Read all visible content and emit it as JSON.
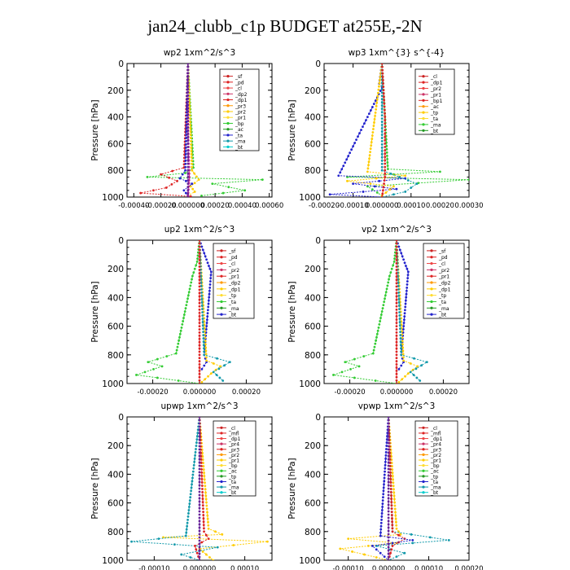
{
  "page": {
    "title": "jan24_clubb_c1p  BUDGET at255E,-2N"
  },
  "chart_data": [
    {
      "type": "line",
      "title": "wp2   1xm^2/s^3",
      "ylabel": "Pressure [hPa]",
      "ylim": [
        1000,
        0
      ],
      "yticks": [
        0,
        200,
        400,
        600,
        800,
        1000
      ],
      "xlim": [
        -0.00045,
        0.00062
      ],
      "xticks": [
        -0.0004,
        -0.0002,
        0.0,
        0.0002,
        0.0004,
        0.0006
      ],
      "xtick_labels": [
        "-0.00040",
        "-0.00020",
        "0.000000",
        "0.00020",
        "0.00040",
        "0.00060"
      ],
      "legend": [
        "_sf",
        "_pd",
        "_cl",
        "_dp2",
        "_dp1",
        "_pr3",
        "_pr2",
        "_pr1",
        "_bp",
        "_ac",
        "_ta",
        "_ma",
        "_bt"
      ],
      "series": [
        {
          "name": "_bp",
          "color": "#33cc33",
          "x": [
            0.0,
            4e-05,
            -2e-05,
            -0.0003,
            0.00055,
            0.00018,
            0.00042,
            0.0001
          ],
          "y": [
            0,
            780,
            820,
            850,
            870,
            900,
            950,
            990
          ]
        },
        {
          "name": "_dp1",
          "color": "#dd2222",
          "x": [
            0.0,
            -3e-05,
            -0.0002,
            -8e-05,
            -0.00016,
            -0.00035,
            2e-05
          ],
          "y": [
            0,
            780,
            830,
            880,
            930,
            970,
            995
          ]
        },
        {
          "name": "_pr1",
          "color": "#ffcc00",
          "x": [
            0.0,
            3e-05,
            8e-05,
            2e-05,
            5e-05,
            0.0
          ],
          "y": [
            0,
            800,
            870,
            920,
            960,
            990
          ]
        },
        {
          "name": "_ac",
          "color": "#2222cc",
          "x": [
            0.0,
            -2e-05,
            -6e-05,
            3e-05,
            -3e-05,
            0.0
          ],
          "y": [
            0,
            800,
            860,
            900,
            950,
            990
          ]
        },
        {
          "name": "_sf",
          "color": "#cc2288",
          "x": [
            0.0,
            0.0,
            1e-05,
            0.0
          ],
          "y": [
            0,
            500,
            850,
            990
          ]
        },
        {
          "name": "_pd",
          "color": "#662299",
          "x": [
            0.0,
            0.0,
            0.0
          ],
          "y": [
            0,
            600,
            1000
          ]
        }
      ]
    },
    {
      "type": "line",
      "title": "wp3   1xm^{3} s^{-4}",
      "ylabel": "Pressure [hPa]",
      "ylim": [
        1000,
        0
      ],
      "yticks": [
        0,
        200,
        400,
        600,
        800,
        1000
      ],
      "xlim": [
        -0.0002,
        0.0003
      ],
      "xticks": [
        -0.0002,
        -0.0001,
        0.0,
        0.0001,
        0.0002,
        0.0003
      ],
      "xtick_labels": [
        "-0.00020",
        "-0.00010",
        "0.000000",
        "0.00010",
        "0.00020",
        "0.00030"
      ],
      "legend": [
        "_cl",
        "_dp1",
        "_pr2",
        "_pr1",
        "_bp1",
        "_ac",
        "_tp",
        "_ta",
        "_ma",
        "_bt"
      ],
      "series": [
        {
          "name": "_ac",
          "color": "#33cc33",
          "x": [
            0.0,
            2e-05,
            0.0002,
            -0.00012,
            0.0003,
            -5e-05,
            0.0
          ],
          "y": [
            0,
            790,
            810,
            850,
            870,
            920,
            990
          ]
        },
        {
          "name": "_tp",
          "color": "#2222cc",
          "x": [
            0.0,
            -1e-05,
            0.0,
            -0.00015,
            8e-05,
            -0.0001,
            5e-05,
            -0.00018,
            0.0
          ],
          "y": [
            0,
            150,
            180,
            840,
            860,
            900,
            940,
            980,
            1000
          ]
        },
        {
          "name": "_pr1",
          "color": "#ffcc00",
          "x": [
            0.0,
            -5e-05,
            8e-05,
            -0.00012,
            4e-05,
            0.0
          ],
          "y": [
            0,
            810,
            840,
            880,
            920,
            990
          ]
        },
        {
          "name": "_ta",
          "color": "#1199aa",
          "x": [
            0.0,
            0.0,
            0.00012,
            8e-05,
            0.0
          ],
          "y": [
            0,
            800,
            900,
            960,
            1000
          ]
        },
        {
          "name": "_cl",
          "color": "#dd2222",
          "x": [
            0.0,
            1e-05,
            1e-05,
            0.0
          ],
          "y": [
            0,
            400,
            850,
            1000
          ]
        }
      ]
    },
    {
      "type": "line",
      "title": "up2   1xm^2/s^3",
      "ylabel": "Pressure [hPa]",
      "ylim": [
        1000,
        0
      ],
      "yticks": [
        0,
        200,
        400,
        600,
        800,
        1000
      ],
      "xlim": [
        -0.00031,
        0.00031
      ],
      "xticks": [
        -0.0002,
        0.0,
        0.0002
      ],
      "xtick_labels": [
        "-0.00020",
        "0.000000",
        "0.00020"
      ],
      "legend": [
        "_sf",
        "_pd",
        "_cl",
        "_pr2",
        "_pr1",
        "_dp2",
        "_dp1",
        "_tp",
        "_ta",
        "_ma",
        "_bt"
      ],
      "series": [
        {
          "name": "_dp2",
          "color": "#33cc33",
          "x": [
            0.0,
            -1e-05,
            -3e-05,
            -0.0001,
            -0.00022,
            -0.00016,
            -0.00027,
            0.0
          ],
          "y": [
            0,
            150,
            250,
            790,
            850,
            880,
            940,
            1000
          ]
        },
        {
          "name": "_tp",
          "color": "#2222cc",
          "x": [
            0.0,
            4e-05,
            5e-05,
            2e-05,
            3e-05,
            1e-05
          ],
          "y": [
            0,
            180,
            220,
            800,
            850,
            900
          ]
        },
        {
          "name": "_pr2",
          "color": "#ffcc00",
          "x": [
            0.0,
            3e-05,
            9e-05,
            5e-05,
            1e-05
          ],
          "y": [
            0,
            840,
            880,
            930,
            990
          ]
        },
        {
          "name": "_ta",
          "color": "#1199aa",
          "x": [
            0.0,
            2e-05,
            0.00013,
            6e-05,
            0.0001
          ],
          "y": [
            0,
            800,
            850,
            920,
            980
          ]
        },
        {
          "name": "_sf",
          "color": "#dd2222",
          "x": [
            0.0,
            0.0,
            0.0
          ],
          "y": [
            0,
            600,
            1000
          ]
        }
      ]
    },
    {
      "type": "line",
      "title": "vp2   1xm^2/s^3",
      "ylabel": "Pressure [hPa]",
      "ylim": [
        1000,
        0
      ],
      "yticks": [
        0,
        200,
        400,
        600,
        800,
        1000
      ],
      "xlim": [
        -0.00031,
        0.00031
      ],
      "xticks": [
        -0.0002,
        0.0,
        0.0002
      ],
      "xtick_labels": [
        "-0.00020",
        "0.000000",
        "0.00020"
      ],
      "legend": [
        "_sf",
        "_pd",
        "_cl",
        "_pr2",
        "_pr1",
        "_dp2",
        "_dp1",
        "_tp",
        "_ta",
        "_ma",
        "_bt"
      ],
      "series": [
        {
          "name": "_dp2",
          "color": "#33cc33",
          "x": [
            0.0,
            -1e-05,
            -3e-05,
            -0.0001,
            -0.00022,
            -0.00016,
            -0.00027,
            0.0
          ],
          "y": [
            0,
            150,
            250,
            790,
            850,
            880,
            940,
            1000
          ]
        },
        {
          "name": "_tp",
          "color": "#2222cc",
          "x": [
            0.0,
            4e-05,
            5e-05,
            2e-05,
            3e-05,
            1e-05
          ],
          "y": [
            0,
            180,
            220,
            800,
            850,
            900
          ]
        },
        {
          "name": "_pr2",
          "color": "#ffcc00",
          "x": [
            0.0,
            3e-05,
            9e-05,
            5e-05,
            1e-05
          ],
          "y": [
            0,
            840,
            880,
            930,
            990
          ]
        },
        {
          "name": "_ta",
          "color": "#1199aa",
          "x": [
            0.0,
            2e-05,
            0.00013,
            6e-05,
            0.0001
          ],
          "y": [
            0,
            800,
            850,
            920,
            980
          ]
        },
        {
          "name": "_sf",
          "color": "#dd2222",
          "x": [
            0.0,
            0.0,
            0.0
          ],
          "y": [
            0,
            600,
            1000
          ]
        }
      ]
    },
    {
      "type": "line",
      "title": "upwp   1xm^2/s^3",
      "ylabel": "Pressure [hPa]",
      "ylim": [
        1000,
        0
      ],
      "yticks": [
        0,
        200,
        400,
        600,
        800,
        1000
      ],
      "xlim": [
        -0.00016,
        0.00016
      ],
      "xticks": [
        -0.0001,
        0.0,
        0.0001
      ],
      "xtick_labels": [
        "-0.00010",
        "0.000000",
        "0.00010"
      ],
      "legend": [
        "_cl",
        "_mfl",
        "_dp1",
        "_pr4",
        "_pr3",
        "_pr2",
        "_pr1",
        "_bp",
        "_ac",
        "_tp",
        "_ta",
        "_ma",
        "_bt"
      ],
      "series": [
        {
          "name": "_pr1",
          "color": "#ffcc00",
          "x": [
            0.0,
            2e-05,
            5e-05,
            -8e-05,
            0.00015,
            0.0,
            3e-05
          ],
          "y": [
            0,
            780,
            820,
            840,
            870,
            920,
            1000
          ]
        },
        {
          "name": "_ta",
          "color": "#1199aa",
          "x": [
            0.0,
            -3e-05,
            -0.00015,
            4e-05,
            -4e-05,
            0.0
          ],
          "y": [
            0,
            830,
            870,
            910,
            960,
            1000
          ]
        },
        {
          "name": "_dp1",
          "color": "#dd2222",
          "x": [
            0.0,
            1e-05,
            2e-05,
            -1e-05,
            0.0
          ],
          "y": [
            0,
            800,
            850,
            900,
            1000
          ]
        },
        {
          "name": "_cl",
          "color": "#662299",
          "x": [
            0.0,
            0.0,
            0.0
          ],
          "y": [
            0,
            500,
            1000
          ]
        }
      ]
    },
    {
      "type": "line",
      "title": "vpwp   1xm^2/s^3",
      "ylabel": "Pressure [hPa]",
      "ylim": [
        1000,
        0
      ],
      "yticks": [
        0,
        200,
        400,
        600,
        800,
        1000
      ],
      "xlim": [
        -0.00016,
        0.0002
      ],
      "xticks": [
        -0.0001,
        0.0,
        0.0001,
        0.0002
      ],
      "xtick_labels": [
        "-0.00010",
        "0.000000",
        "0.00010",
        "0.00020"
      ],
      "legend": [
        "_cl",
        "_mfl",
        "_dp1",
        "_pr4",
        "_pr3",
        "_pr2",
        "_pr1",
        "_bp",
        "_ac",
        "_tp",
        "_ta",
        "_ma",
        "_bt"
      ],
      "series": [
        {
          "name": "_pr1",
          "color": "#ffcc00",
          "x": [
            0.0,
            2e-05,
            3e-05,
            -0.0001,
            2e-05,
            -0.00012,
            0.0
          ],
          "y": [
            0,
            780,
            820,
            850,
            880,
            920,
            1000
          ]
        },
        {
          "name": "_ta",
          "color": "#1199aa",
          "x": [
            0.0,
            1e-05,
            0.00015,
            -3e-05,
            4e-05,
            0.0
          ],
          "y": [
            0,
            800,
            860,
            900,
            950,
            1000
          ]
        },
        {
          "name": "_dp1",
          "color": "#dd2222",
          "x": [
            0.0,
            1e-05,
            4e-05,
            1e-05,
            0.0
          ],
          "y": [
            0,
            800,
            850,
            900,
            1000
          ]
        },
        {
          "name": "_ac",
          "color": "#2222cc",
          "x": [
            0.0,
            -2e-05,
            6e-05,
            -4e-05,
            0.0
          ],
          "y": [
            0,
            830,
            860,
            900,
            1000
          ]
        },
        {
          "name": "_cl",
          "color": "#662299",
          "x": [
            0.0,
            0.0,
            0.0
          ],
          "y": [
            0,
            500,
            1000
          ]
        }
      ]
    }
  ]
}
